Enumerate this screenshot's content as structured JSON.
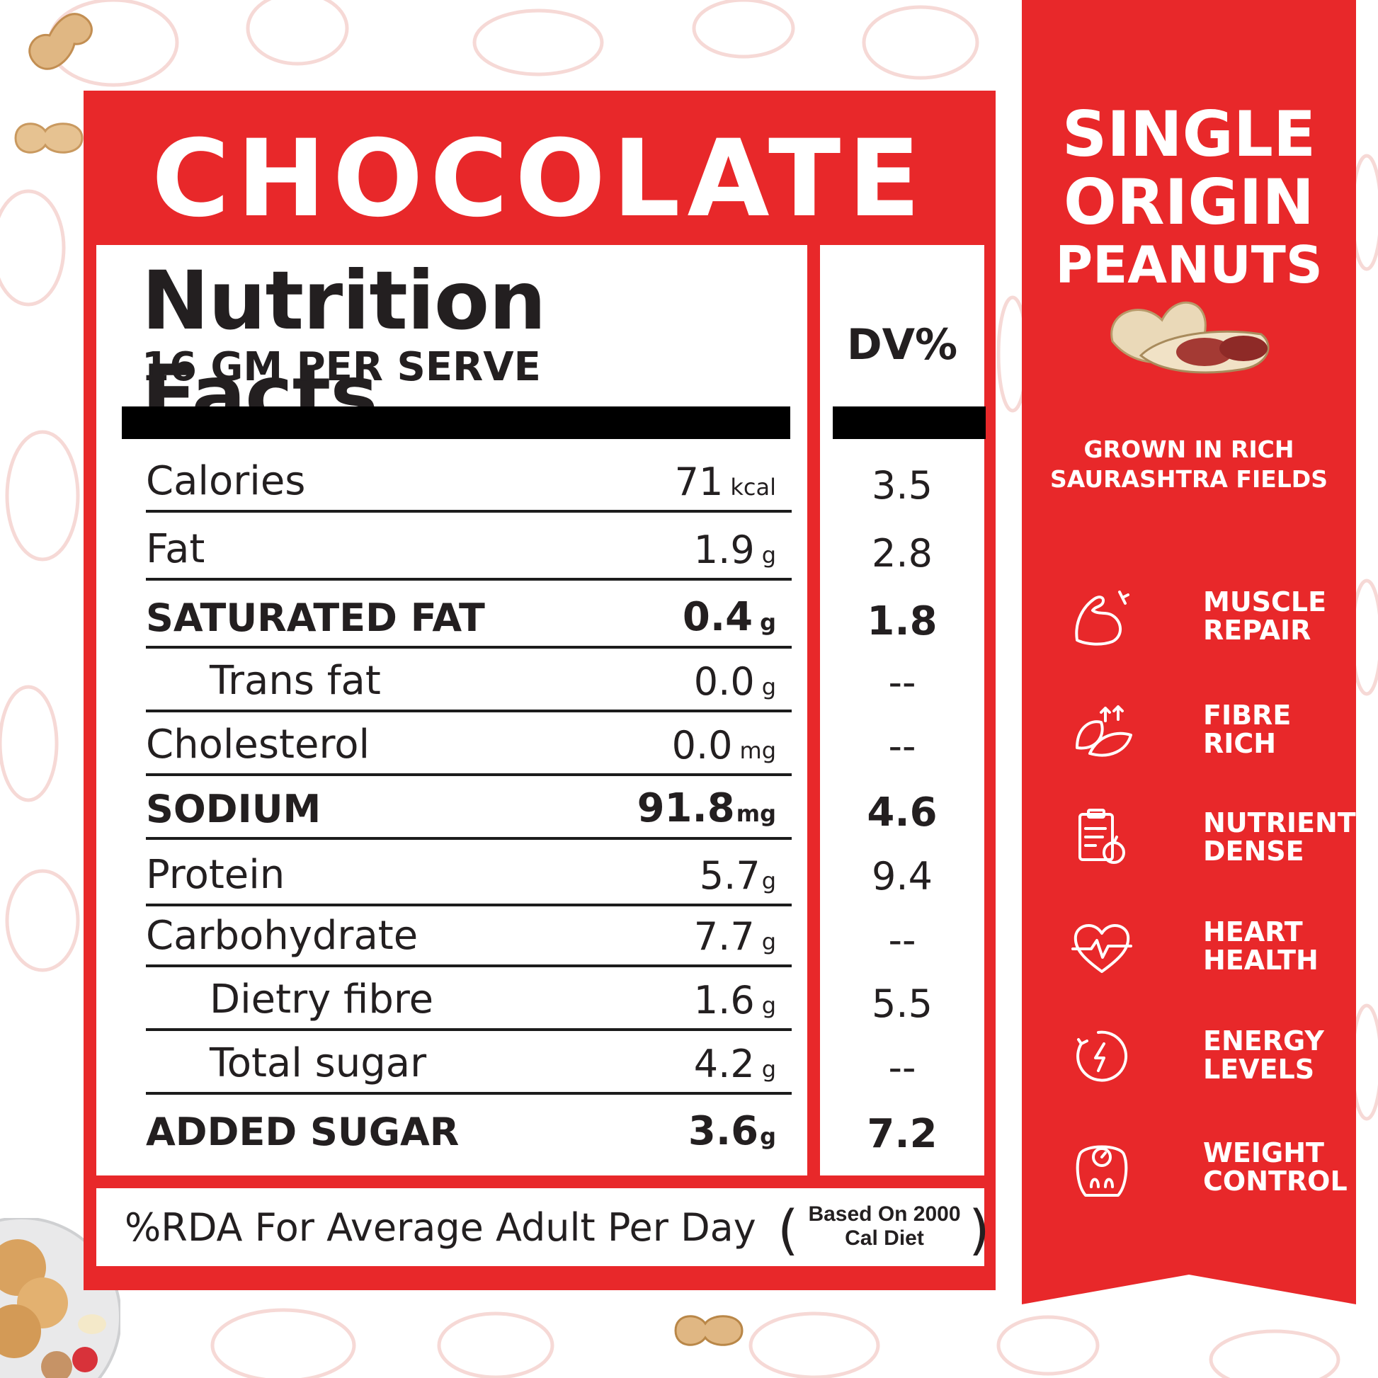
{
  "flavor": "CHOCOLATE",
  "nutrition": {
    "title": "Nutrition Facts",
    "serving": "16 GM PER SERVE",
    "dv_header": "DV%",
    "rows": [
      {
        "label": "Calories",
        "amount": "71",
        "unit": "kcal",
        "dv": "3.5"
      },
      {
        "label": "Fat",
        "amount": "1.9",
        "unit": "g",
        "dv": "2.8"
      },
      {
        "label": "SATURATED FAT",
        "amount": "0.4",
        "unit": "g",
        "dv": "1.8"
      },
      {
        "label": "Trans fat",
        "amount": "0.0",
        "unit": "g",
        "dv": "--"
      },
      {
        "label": "Cholesterol",
        "amount": "0.0",
        "unit": "mg",
        "dv": "--"
      },
      {
        "label": "SODIUM",
        "amount": "91.8",
        "unit": "mg",
        "dv": "4.6"
      },
      {
        "label": "Protein",
        "amount": "5.7",
        "unit": "g",
        "dv": "9.4"
      },
      {
        "label": "Carbohydrate",
        "amount": "7.7",
        "unit": "g",
        "dv": "--"
      },
      {
        "label": "Dietry fibre",
        "amount": "1.6",
        "unit": "g",
        "dv": "5.5"
      },
      {
        "label": "Total sugar",
        "amount": "4.2",
        "unit": "g",
        "dv": "--"
      },
      {
        "label": "ADDED SUGAR",
        "amount": "3.6",
        "unit": "g",
        "dv": "7.2"
      }
    ],
    "rda_text": "%RDA For Average Adult Per Day",
    "rda_paren_open": "(",
    "rda_paren_close": ")",
    "rda_note_line1": "Based On 2000",
    "rda_note_line2": "Cal Diet"
  },
  "ribbon": {
    "title_line1": "SINGLE",
    "title_line2": "ORIGIN",
    "title_line3": "PEANUTS",
    "subtitle_line1": "GROWN IN RICH",
    "subtitle_line2": "SAURASHTRA FIELDS",
    "benefits": [
      {
        "icon": "muscle-icon",
        "line1": "MUSCLE",
        "line2": "REPAIR"
      },
      {
        "icon": "fibre-leaf-icon",
        "line1": "FIBRE",
        "line2": "RICH"
      },
      {
        "icon": "clipboard-apple-icon",
        "line1": "NUTRIENT",
        "line2": "DENSE"
      },
      {
        "icon": "heart-pulse-icon",
        "line1": "HEART",
        "line2": "HEALTH"
      },
      {
        "icon": "energy-bolt-icon",
        "line1": "ENERGY",
        "line2": "LEVELS"
      },
      {
        "icon": "weight-scale-icon",
        "line1": "WEIGHT",
        "line2": "CONTROL"
      }
    ]
  },
  "colors": {
    "brand_red": "#e8282a",
    "text_dark": "#231f20"
  }
}
